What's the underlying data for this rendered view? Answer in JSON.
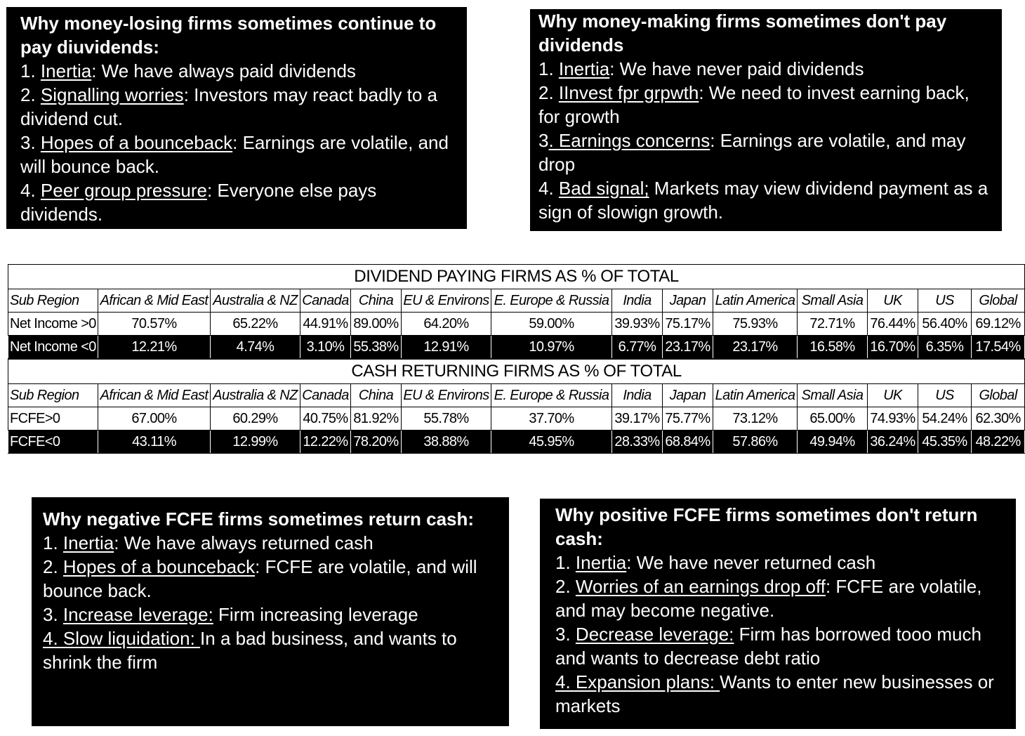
{
  "box_money_losing": {
    "title": "Why money-losing firms sometimes continue to pay diuvidends:",
    "items": [
      {
        "num": "1. ",
        "key": "Inertia",
        "rest": ": We have always paid dividends"
      },
      {
        "num": "2. ",
        "key": "Signalling worries",
        "rest": ": Investors may react badly to a dividend cut."
      },
      {
        "num": "3. ",
        "key": "Hopes of a bounceback",
        "rest": ": Earnings are volatile, and will bounce back."
      },
      {
        "num": "4. ",
        "key": "Peer group pressure",
        "rest": ": Everyone else pays dividends."
      }
    ]
  },
  "box_money_making": {
    "title": "Why money-making firms sometimes don't pay dividends",
    "items": [
      {
        "num": "1. ",
        "key": "Inertia",
        "rest": ": We have never paid dividends"
      },
      {
        "num": "2. ",
        "key": "IInvest fpr grpwth",
        "rest": ": We need to invest earning back, for growth"
      },
      {
        "num": "3",
        "key": ". Earnings concerns",
        "rest": ": Earnings are volatile, and may drop"
      },
      {
        "num": "4. ",
        "key": "Bad signal;",
        "rest": " Markets may view dividend payment as a sign of slowign growth."
      }
    ]
  },
  "box_negative_fcfe": {
    "title": "Why negative FCFE firms sometimes return cash:",
    "items": [
      {
        "num": "1. ",
        "key": "Inertia",
        "rest": ": We have always returned cash"
      },
      {
        "num": "2. ",
        "key": "Hopes of a bounceback",
        "rest": ": FCFE are volatile, and will bounce back."
      },
      {
        "num": "3. ",
        "key": "Increase leverage:",
        "rest": " Firm increasing leverage"
      },
      {
        "num": "",
        "key": "4. Slow liquidation: ",
        "rest": "In a bad business, and wants to shrink the firm"
      }
    ]
  },
  "box_positive_fcfe": {
    "title": "Why positive FCFE firms sometimes don't return cash:",
    "items": [
      {
        "num": "1. ",
        "key": "Inertia",
        "rest": ": We have never returned cash"
      },
      {
        "num": "2. ",
        "key": "Worries of an earnings drop off",
        "rest": ": FCFE are volatile, and may become negative."
      },
      {
        "num": "3. ",
        "key": "Decrease leverage:",
        "rest": " Firm has borrowed tooo much and wants to decrease debt ratio"
      },
      {
        "num": "",
        "key": "4. Expansion plans: ",
        "rest": "Wants to enter new businesses or markets"
      }
    ]
  },
  "table_dividend": {
    "caption": "DIVIDEND PAYING FIRMS AS % OF TOTAL",
    "header": [
      "Sub Region",
      "African & Mid East",
      "Australia & NZ",
      "Canada",
      "China",
      "EU & Environs",
      "E. Europe & Russia",
      "India",
      "Japan",
      "Latin America",
      "Small Asia",
      "UK",
      "US",
      "Global"
    ],
    "rows": [
      [
        "Net Income >0",
        "70.57%",
        "65.22%",
        "44.91%",
        "89.00%",
        "64.20%",
        "59.00%",
        "39.93%",
        "75.17%",
        "75.93%",
        "72.71%",
        "76.44%",
        "56.40%",
        "69.12%"
      ],
      [
        "Net Income <0",
        "12.21%",
        "4.74%",
        "3.10%",
        "55.38%",
        "12.91%",
        "10.97%",
        "6.77%",
        "23.17%",
        "23.17%",
        "16.58%",
        "16.70%",
        "6.35%",
        "17.54%"
      ]
    ]
  },
  "table_cash": {
    "caption": "CASH RETURNING FIRMS AS % OF TOTAL",
    "header": [
      "Sub Region",
      "African & Mid East",
      "Australia & NZ",
      "Canada",
      "China",
      "EU & Environs",
      "E. Europe & Russia",
      "India",
      "Japan",
      "Latin America",
      "Small Asia",
      "UK",
      "US",
      "Global"
    ],
    "rows": [
      [
        "FCFE>0",
        "67.00%",
        "60.29%",
        "40.75%",
        "81.92%",
        "55.78%",
        "37.70%",
        "39.17%",
        "75.77%",
        "73.12%",
        "65.00%",
        "74.93%",
        "54.24%",
        "62.30%"
      ],
      [
        "FCFE<0",
        "43.11%",
        "12.99%",
        "12.22%",
        "78.20%",
        "38.88%",
        "45.95%",
        "28.33%",
        "68.84%",
        "57.86%",
        "49.94%",
        "36.24%",
        "45.35%",
        "48.22%"
      ]
    ]
  }
}
